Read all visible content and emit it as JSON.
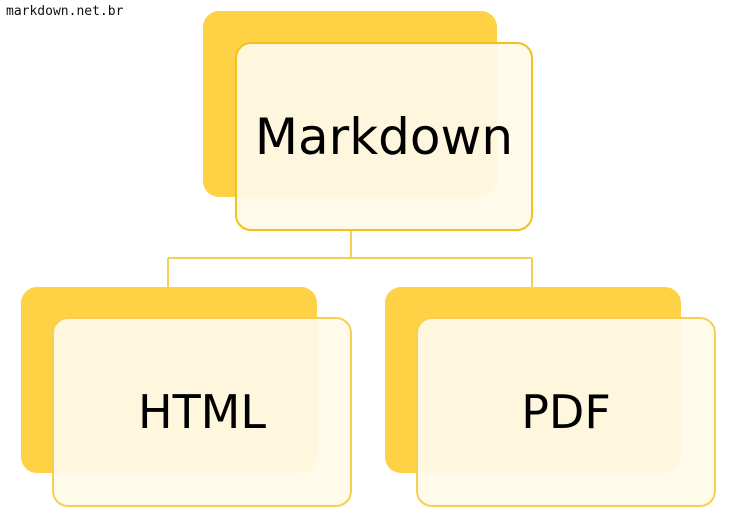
{
  "watermark": "markdown.net.br",
  "colors": {
    "back_fill": "#ffd246",
    "front_fill": "#fffae8",
    "border": "#f2c21a",
    "connector": "#f5cf52",
    "text": "#000000"
  },
  "diagram": {
    "root": {
      "label": "Markdown"
    },
    "children": [
      {
        "label": "HTML"
      },
      {
        "label": "PDF"
      }
    ]
  }
}
